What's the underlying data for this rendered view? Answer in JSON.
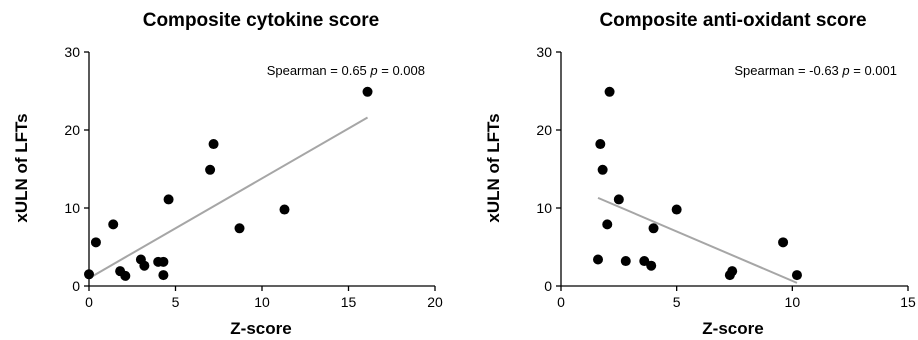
{
  "chart_data": [
    {
      "type": "scatter",
      "title": "Composite cytokine score",
      "xlabel": "Z-score",
      "ylabel": "xULN of LFTs",
      "xlim": [
        0,
        20
      ],
      "ylim": [
        0,
        30
      ],
      "xticks": [
        "0",
        "5",
        "10",
        "15",
        "20"
      ],
      "yticks": [
        "0",
        "10",
        "20",
        "30"
      ],
      "annotation": {
        "text": "Spearman = 0.65 ",
        "p_label": "p",
        "p_value": " = 0.008"
      },
      "points": [
        {
          "x": 0.0,
          "y": 1.5
        },
        {
          "x": 0.4,
          "y": 5.6
        },
        {
          "x": 1.4,
          "y": 7.9
        },
        {
          "x": 1.8,
          "y": 1.9
        },
        {
          "x": 2.1,
          "y": 1.3
        },
        {
          "x": 3.0,
          "y": 3.4
        },
        {
          "x": 3.2,
          "y": 2.6
        },
        {
          "x": 4.0,
          "y": 3.1
        },
        {
          "x": 4.3,
          "y": 3.1
        },
        {
          "x": 4.3,
          "y": 1.4
        },
        {
          "x": 4.6,
          "y": 11.1
        },
        {
          "x": 7.0,
          "y": 14.9
        },
        {
          "x": 7.2,
          "y": 18.2
        },
        {
          "x": 8.7,
          "y": 7.4
        },
        {
          "x": 11.3,
          "y": 9.8
        },
        {
          "x": 16.1,
          "y": 24.9
        }
      ],
      "trend_line": [
        {
          "x": 0.0,
          "y": 1.0
        },
        {
          "x": 16.1,
          "y": 21.6
        }
      ],
      "trend_color": "#a6a6a6",
      "marker_color": "#000000",
      "grid": false
    },
    {
      "type": "scatter",
      "title": "Composite anti-oxidant score",
      "xlabel": "Z-score",
      "ylabel": "xULN of LFTs",
      "xlim": [
        0,
        15
      ],
      "ylim": [
        0,
        30
      ],
      "xticks": [
        "0",
        "5",
        "10",
        "15"
      ],
      "yticks": [
        "0",
        "10",
        "20",
        "30"
      ],
      "annotation": {
        "text": "Spearman = -0.63 ",
        "p_label": "p",
        "p_value": " = 0.001"
      },
      "points": [
        {
          "x": 1.6,
          "y": 3.4
        },
        {
          "x": 1.7,
          "y": 18.2
        },
        {
          "x": 1.8,
          "y": 14.9
        },
        {
          "x": 2.0,
          "y": 7.9
        },
        {
          "x": 2.1,
          "y": 24.9
        },
        {
          "x": 2.5,
          "y": 11.1
        },
        {
          "x": 2.8,
          "y": 3.2
        },
        {
          "x": 3.6,
          "y": 3.2
        },
        {
          "x": 3.9,
          "y": 2.6
        },
        {
          "x": 4.0,
          "y": 7.4
        },
        {
          "x": 5.0,
          "y": 9.8
        },
        {
          "x": 7.3,
          "y": 1.4
        },
        {
          "x": 7.4,
          "y": 1.9
        },
        {
          "x": 9.6,
          "y": 5.6
        },
        {
          "x": 10.2,
          "y": 1.4
        }
      ],
      "trend_line": [
        {
          "x": 1.6,
          "y": 11.3
        },
        {
          "x": 10.2,
          "y": 0.4
        }
      ],
      "trend_color": "#a6a6a6",
      "marker_color": "#000000",
      "grid": false
    }
  ]
}
